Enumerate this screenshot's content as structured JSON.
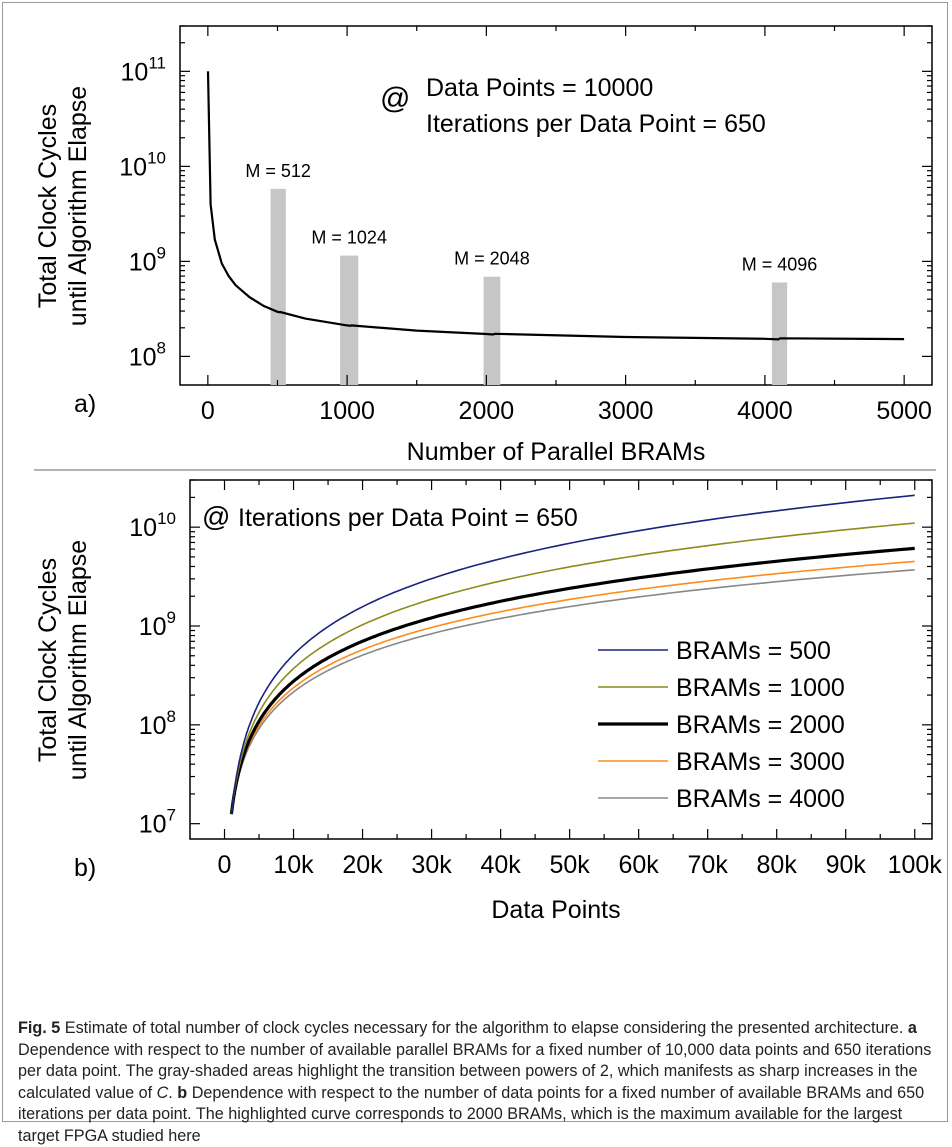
{
  "chart_data": [
    {
      "type": "line",
      "panel_label": "a)",
      "annotation": {
        "symbol": "@",
        "lines": [
          "Data Points = 10000",
          "Iterations per Data Point = 650"
        ]
      },
      "xlabel": "Number of Parallel BRAMs",
      "ylabel": [
        "Total Clock Cycles",
        "until Algorithm Elapse"
      ],
      "xlim": [
        -200,
        5200
      ],
      "ylim": [
        50000000,
        300000000000
      ],
      "yscale": "log",
      "x_ticks": [
        0,
        1000,
        2000,
        3000,
        4000,
        5000
      ],
      "x_tick_labels": [
        "0",
        "1000",
        "2000",
        "3000",
        "4000",
        "5000"
      ],
      "y_ticks": [
        100000000,
        1000000000,
        10000000000,
        100000000000
      ],
      "y_tick_labels": [
        {
          "base": "10",
          "exp": "8"
        },
        {
          "base": "10",
          "exp": "9"
        },
        {
          "base": "10",
          "exp": "10"
        },
        {
          "base": "10",
          "exp": "11"
        }
      ],
      "highlight_bars": [
        {
          "label": "M = 512",
          "x_range": [
            450,
            560
          ],
          "top": 5800000000
        },
        {
          "label": "M = 1024",
          "x_range": [
            950,
            1080
          ],
          "top": 1150000000
        },
        {
          "label": "M = 2048",
          "x_range": [
            1980,
            2100
          ],
          "top": 690000000
        },
        {
          "label": "M = 4096",
          "x_range": [
            4050,
            4160
          ],
          "top": 600000000
        }
      ],
      "series": [
        {
          "x": [
            1,
            20,
            50,
            100,
            150,
            200,
            300,
            400,
            500,
            512,
            520,
            700,
            1000,
            1024,
            1030,
            1500,
            2000,
            2048,
            2060,
            3000,
            4000,
            4096,
            4110,
            5000
          ],
          "y": [
            100000000000,
            4000000000,
            1700000000,
            950000000,
            700000000,
            560000000,
            420000000,
            340000000,
            295000000,
            292000000,
            293000000,
            250000000,
            212000000,
            210000000,
            212000000,
            187000000,
            172000000,
            170000000,
            173000000,
            160000000,
            153000000,
            151000000,
            155000000,
            152000000
          ]
        }
      ]
    },
    {
      "type": "line",
      "panel_label": "b)",
      "annotation": {
        "symbol": "@",
        "lines": [
          "Iterations per Data Point = 650"
        ]
      },
      "xlabel": "Data Points",
      "ylabel": [
        "Total Clock Cycles",
        "until Algorithm Elapse"
      ],
      "xlim": [
        -5000,
        102500
      ],
      "ylim": [
        7000000,
        30000000000
      ],
      "yscale": "log",
      "x_ticks": [
        0,
        10000,
        20000,
        30000,
        40000,
        50000,
        60000,
        70000,
        80000,
        90000,
        100000
      ],
      "x_tick_labels": [
        "0",
        "10k",
        "20k",
        "30k",
        "40k",
        "50k",
        "60k",
        "70k",
        "80k",
        "90k",
        "100k"
      ],
      "y_ticks": [
        10000000,
        100000000,
        1000000000,
        10000000000
      ],
      "y_tick_labels": [
        {
          "base": "10",
          "exp": "7"
        },
        {
          "base": "10",
          "exp": "8"
        },
        {
          "base": "10",
          "exp": "9"
        },
        {
          "base": "10",
          "exp": "10"
        }
      ],
      "legend_position": "bottom-right",
      "series": [
        {
          "name": "BRAMs = 500",
          "color": "#1a237e",
          "factor": 2.1,
          "line_width": 1.6
        },
        {
          "name": "BRAMs = 1000",
          "color": "#8c8c1c",
          "factor": 1.1,
          "line_width": 1.6
        },
        {
          "name": "BRAMs = 2000",
          "color": "#000000",
          "factor": 0.61,
          "line_width": 3.2
        },
        {
          "name": "BRAMs = 3000",
          "color": "#ff8c1a",
          "factor": 0.45,
          "line_width": 1.6
        },
        {
          "name": "BRAMs = 4000",
          "color": "#888888",
          "factor": 0.37,
          "line_width": 1.6
        }
      ],
      "curve_model": {
        "x_start": 1000,
        "x_end": 100000,
        "y_start": 12500000,
        "y_at_100k_base": 10000000000
      }
    }
  ],
  "caption": {
    "fig_label": "Fig. 5",
    "text_1": "Estimate of total number of clock cycles necessary for the algorithm to elapse considering the presented architecture.",
    "bold_a": "a",
    "text_2": "Dependence with respect to the number of available parallel BRAMs for a fixed number of 10,000 data points and 650 iterations per data point. The gray-shaded areas highlight the transition between powers of 2, which manifests as sharp increases in the calculated value of",
    "italic_c": "C",
    "text_3": ".",
    "bold_b": "b",
    "text_4": "Dependence with respect to the number of data points for a fixed number of available BRAMs and 650 iterations per data point. The highlighted curve corresponds to 2000 BRAMs, which is the maximum available for the largest target FPGA studied here"
  }
}
